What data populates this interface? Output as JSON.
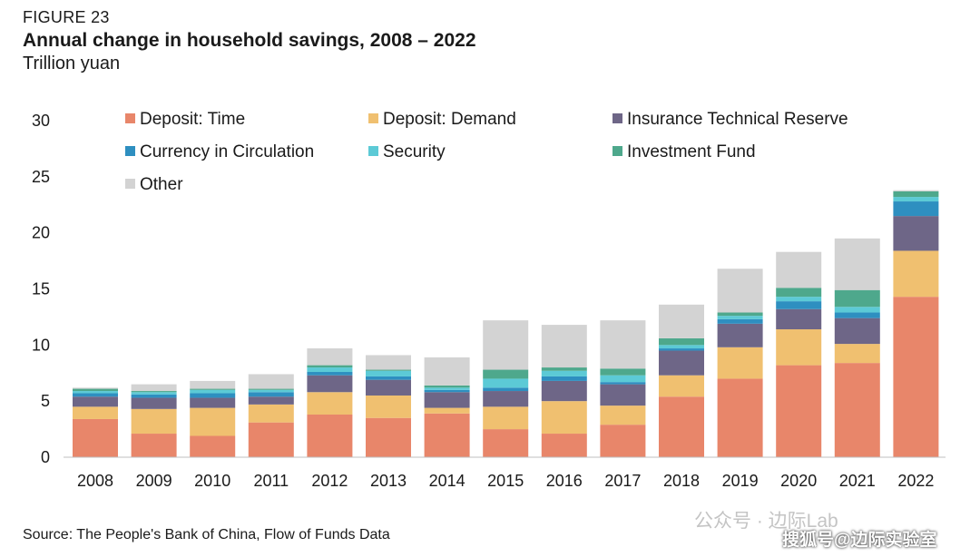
{
  "figure_label": "FIGURE 23",
  "source": "Source: The People's Bank of China, Flow of Funds Data",
  "watermark": {
    "primary": "公众号 · 边际Lab",
    "secondary": "搜狐号@边际实验室"
  },
  "chart_data": {
    "type": "bar",
    "stacked": true,
    "title": "Annual change in household savings, 2008 – 2022",
    "subtitle": "Trillion yuan",
    "xlabel": "",
    "ylabel": "",
    "ylim": [
      0,
      30
    ],
    "yticks": [
      "0",
      "5",
      "10",
      "15",
      "20",
      "25",
      "30"
    ],
    "legend_position": "top-left",
    "categories": [
      "2008",
      "2009",
      "2010",
      "2011",
      "2012",
      "2013",
      "2014",
      "2015",
      "2016",
      "2017",
      "2018",
      "2019",
      "2020",
      "2021",
      "2022"
    ],
    "series": [
      {
        "name": "Deposit: Time",
        "color": "#E8866A",
        "values": [
          3.4,
          2.1,
          1.9,
          3.1,
          3.8,
          3.5,
          3.9,
          2.5,
          2.1,
          2.9,
          5.4,
          7.0,
          8.2,
          8.4,
          14.3
        ]
      },
      {
        "name": "Deposit: Demand",
        "color": "#F0C070",
        "values": [
          1.1,
          2.2,
          2.5,
          1.6,
          2.0,
          2.0,
          0.5,
          2.0,
          2.9,
          1.7,
          1.9,
          2.8,
          3.2,
          1.7,
          4.1
        ]
      },
      {
        "name": "Insurance Technical Reserve",
        "color": "#6E6687",
        "values": [
          0.9,
          1.0,
          0.9,
          0.7,
          1.5,
          1.4,
          1.4,
          1.4,
          1.8,
          1.9,
          2.2,
          2.1,
          1.8,
          2.3,
          3.1
        ]
      },
      {
        "name": "Currency in Circulation",
        "color": "#2E8FC0",
        "values": [
          0.3,
          0.3,
          0.4,
          0.4,
          0.3,
          0.3,
          0.2,
          0.3,
          0.4,
          0.2,
          0.2,
          0.4,
          0.7,
          0.5,
          1.3
        ]
      },
      {
        "name": "Security",
        "color": "#5CCAD6",
        "values": [
          0.2,
          0.2,
          0.3,
          0.2,
          0.4,
          0.5,
          0.2,
          0.8,
          0.5,
          0.6,
          0.3,
          0.3,
          0.4,
          0.5,
          0.4
        ]
      },
      {
        "name": "Investment Fund",
        "color": "#4EA88C",
        "values": [
          0.2,
          0.1,
          0.1,
          0.1,
          0.2,
          0.1,
          0.2,
          0.8,
          0.3,
          0.6,
          0.6,
          0.3,
          0.8,
          1.5,
          0.5
        ]
      },
      {
        "name": "Other",
        "color": "#D3D3D3",
        "values": [
          0.1,
          0.6,
          0.7,
          1.3,
          1.5,
          1.3,
          2.5,
          4.4,
          3.8,
          4.3,
          3.0,
          3.9,
          3.2,
          4.6,
          0.1
        ]
      }
    ]
  }
}
